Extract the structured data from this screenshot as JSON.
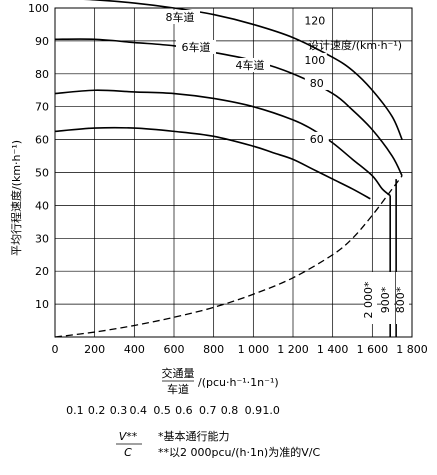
{
  "chart_data": {
    "type": "line",
    "ylabel": "平均行程速度/(km·h⁻¹)",
    "xlabel_top": "交通量",
    "xlabel_bottom": "车道",
    "xlabel_unit": "/(pcu·h⁻¹·1n⁻¹)",
    "xlim": [
      0,
      1800
    ],
    "ylim": [
      0,
      100
    ],
    "xticks": [
      0,
      200,
      400,
      600,
      800,
      1000,
      1200,
      1400,
      1600,
      1800
    ],
    "xtick_labels": [
      "0",
      "200",
      "400",
      "600",
      "800",
      "1 000",
      "1 200",
      "1 400",
      "1 600",
      "1 800"
    ],
    "yticks": [
      10,
      20,
      30,
      40,
      50,
      60,
      70,
      80,
      90,
      100
    ],
    "ytick_labels": [
      "10",
      "20",
      "30",
      "40",
      "50",
      "60",
      "70",
      "80",
      "90",
      "100"
    ],
    "grid": true,
    "series": [
      {
        "name": "120",
        "lane_label": "8车道",
        "points": [
          [
            0,
            103
          ],
          [
            200,
            102.5
          ],
          [
            400,
            101.5
          ],
          [
            600,
            100
          ],
          [
            800,
            98
          ],
          [
            1000,
            95
          ],
          [
            1200,
            91
          ],
          [
            1400,
            85
          ],
          [
            1500,
            81
          ],
          [
            1600,
            75
          ],
          [
            1700,
            67
          ],
          [
            1750,
            60
          ]
        ]
      },
      {
        "name": "100",
        "lane_label": "6车道",
        "points": [
          [
            0,
            90.5
          ],
          [
            200,
            90.5
          ],
          [
            400,
            89.5
          ],
          [
            600,
            88.5
          ],
          [
            800,
            86.5
          ],
          [
            1000,
            84
          ],
          [
            1200,
            80
          ],
          [
            1400,
            74
          ],
          [
            1500,
            69
          ],
          [
            1600,
            63
          ],
          [
            1700,
            55
          ],
          [
            1750,
            49
          ]
        ]
      },
      {
        "name": "80",
        "lane_label": "4车道",
        "points": [
          [
            0,
            74
          ],
          [
            200,
            75
          ],
          [
            400,
            74.5
          ],
          [
            600,
            74
          ],
          [
            800,
            72.5
          ],
          [
            1000,
            70
          ],
          [
            1200,
            66
          ],
          [
            1300,
            63
          ],
          [
            1400,
            59
          ],
          [
            1500,
            54
          ],
          [
            1600,
            49
          ],
          [
            1650,
            45
          ],
          [
            1690,
            43
          ],
          [
            1690,
            0
          ]
        ]
      },
      {
        "name": "60",
        "points": [
          [
            0,
            62.5
          ],
          [
            200,
            63.5
          ],
          [
            400,
            63.5
          ],
          [
            600,
            62.5
          ],
          [
            800,
            61
          ],
          [
            1000,
            58
          ],
          [
            1100,
            56
          ],
          [
            1200,
            54
          ],
          [
            1300,
            51
          ],
          [
            1400,
            48
          ],
          [
            1500,
            45
          ],
          [
            1590,
            42
          ]
        ]
      }
    ],
    "capacity_curve": {
      "points": [
        [
          0,
          0
        ],
        [
          200,
          1.5
        ],
        [
          400,
          3.5
        ],
        [
          600,
          6
        ],
        [
          800,
          9
        ],
        [
          1000,
          13
        ],
        [
          1200,
          18
        ],
        [
          1400,
          25
        ],
        [
          1500,
          30
        ],
        [
          1600,
          37
        ],
        [
          1700,
          45
        ],
        [
          1750,
          49
        ]
      ]
    },
    "capacity_lines": {
      "labels": [
        "2 000*",
        "900*",
        "800*"
      ],
      "x": [
        1650,
        1690,
        1720
      ]
    },
    "speed_legend": "设计速度/(km·h⁻¹)",
    "vc_ticks": [
      "0.1",
      "0.2",
      "0.3",
      "0.4",
      "0.5",
      "0.6",
      "0.7",
      "0.8",
      "0.9",
      "1.0"
    ],
    "vc_tick_x": [
      100,
      210,
      320,
      420,
      540,
      650,
      770,
      880,
      1000,
      1090
    ],
    "notes": {
      "fraction_top": "V**",
      "fraction_bottom": "C",
      "note1": "*基本通行能力",
      "note2": "**以2 000pcu/(h·1n)为准的V/C"
    }
  }
}
